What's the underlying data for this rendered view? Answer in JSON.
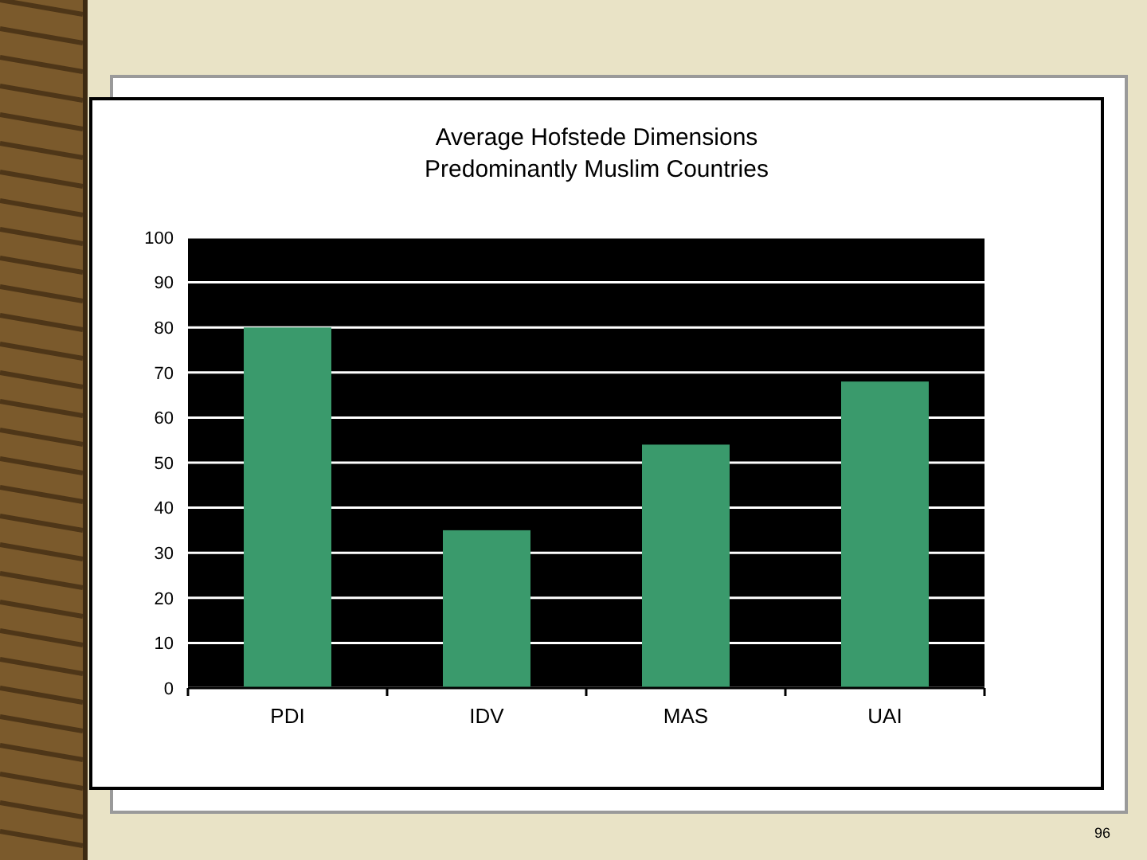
{
  "chart_data": {
    "type": "bar",
    "title": "Average Hofstede Dimensions",
    "subtitle": "Predominantly Muslim Countries",
    "categories": [
      "PDI",
      "IDV",
      "MAS",
      "UAI"
    ],
    "values": [
      80,
      35,
      54,
      68
    ],
    "color": "#3a9a6c",
    "ylim": [
      0,
      100
    ],
    "yticks": [
      0,
      10,
      20,
      30,
      40,
      50,
      60,
      70,
      80,
      90,
      100
    ],
    "grid": "y",
    "annotations": [
      "96"
    ]
  }
}
